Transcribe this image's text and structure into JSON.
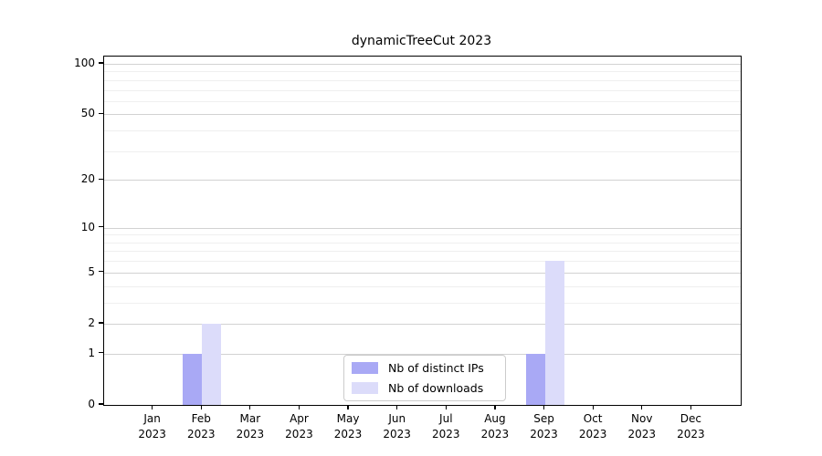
{
  "title": "dynamicTreeCut 2023",
  "chart_data": {
    "type": "bar",
    "title": "dynamicTreeCut 2023",
    "x_months": [
      "Jan",
      "Feb",
      "Mar",
      "Apr",
      "May",
      "Jun",
      "Jul",
      "Aug",
      "Sep",
      "Oct",
      "Nov",
      "Dec"
    ],
    "x_year": "2023",
    "series": [
      {
        "name": "Nb of distinct IPs",
        "key": "distinct-ips",
        "color": "#a9a9f5",
        "values": [
          0,
          1,
          0,
          0,
          0,
          0,
          0,
          0,
          1,
          0,
          0,
          0
        ]
      },
      {
        "name": "Nb of downloads",
        "key": "downloads",
        "color": "#dcdcfa",
        "values": [
          0,
          2,
          0,
          0,
          0,
          0,
          0,
          0,
          6,
          0,
          0,
          0
        ]
      }
    ],
    "yscale": "log1p",
    "ylabel": "",
    "xlabel": "",
    "y_ticks": [
      0,
      1,
      2,
      5,
      10,
      20,
      50,
      100
    ],
    "y_minor_ticks": [
      3,
      4,
      6,
      7,
      8,
      9,
      30,
      40,
      60,
      70,
      80,
      90
    ],
    "ylim": [
      0,
      110
    ],
    "grid": "horizontal",
    "legend_position": "lower-center",
    "colors": {
      "major_grid": "#d2d2d2",
      "minor_grid": "#efefef",
      "spine": "#000000",
      "background": "#ffffff"
    }
  }
}
